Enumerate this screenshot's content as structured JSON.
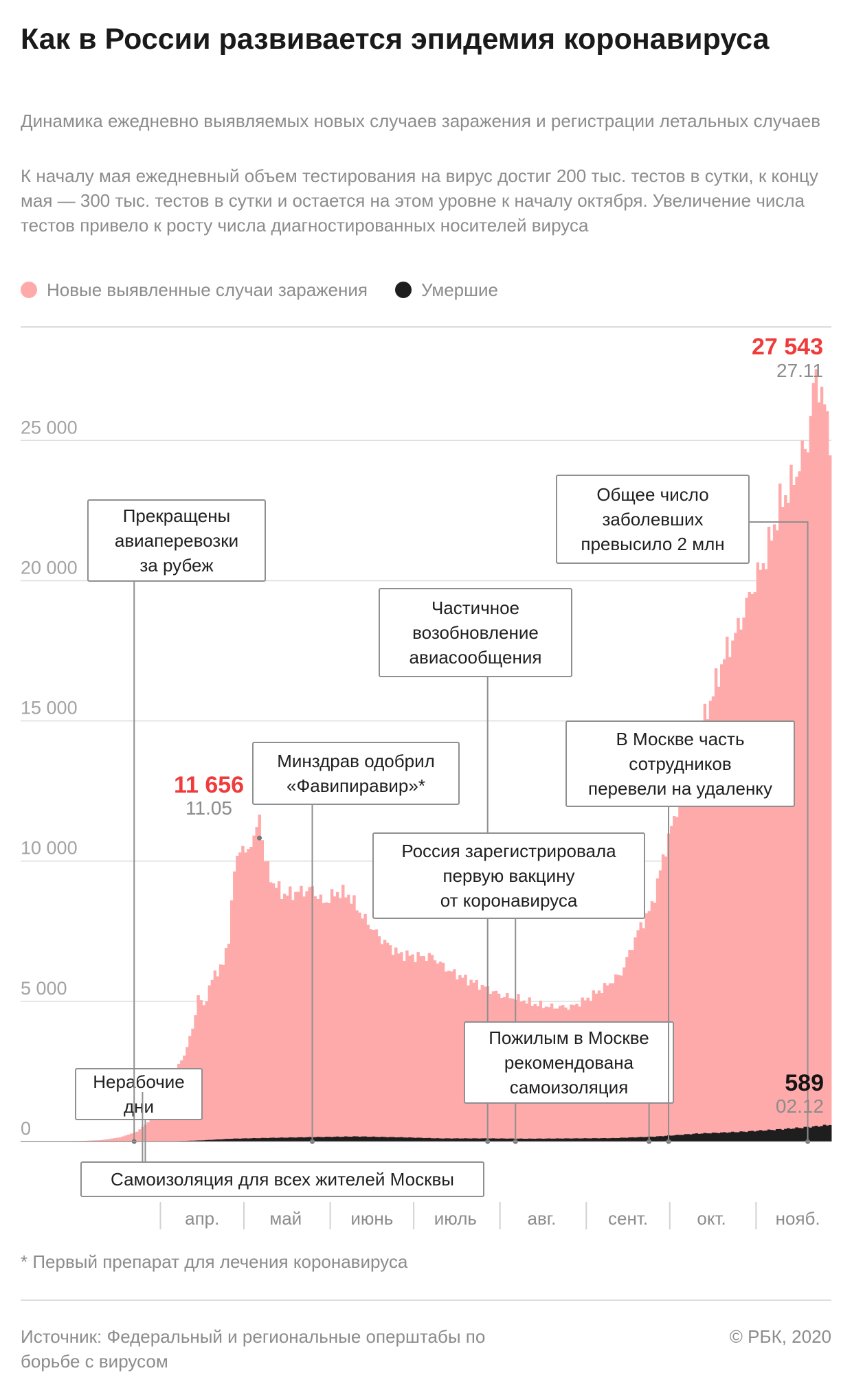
{
  "header": {
    "title": "Как в России развивается эпидемия коронавируса",
    "subtitle": "Динамика ежедневно выявляемых новых случаев заражения и регистрации летальных случаев",
    "description": "К началу мая ежедневный объем тестирования на вирус достиг 200 тыс. тестов в сутки, к концу мая — 300 тыс. тестов в сутки и остается на этом уровне к началу октября. Увеличение числа тестов привело к росту числа диагностированных носителей вируса"
  },
  "legend": {
    "cases_label": "Новые выявленные случаи заражения",
    "deaths_label": "Умершие",
    "cases_color": "#ffaaaa",
    "deaths_color": "#1e1e1e"
  },
  "chart_data": {
    "type": "bar",
    "start_date": "2020-03-03",
    "end_date": "2020-12-02",
    "ylim": [
      0,
      29000
    ],
    "y_ticks": [
      0,
      5000,
      10000,
      15000,
      20000,
      25000
    ],
    "y_tick_labels": [
      "0",
      "5 000",
      "10 000",
      "15 000",
      "20 000",
      "25 000"
    ],
    "month_labels": [
      {
        "date": "2020-04-01",
        "label": "апр."
      },
      {
        "date": "2020-05-01",
        "label": "май"
      },
      {
        "date": "2020-06-01",
        "label": "июнь"
      },
      {
        "date": "2020-07-01",
        "label": "июль"
      },
      {
        "date": "2020-08-01",
        "label": "авг."
      },
      {
        "date": "2020-09-01",
        "label": "сент."
      },
      {
        "date": "2020-10-01",
        "label": "окт."
      },
      {
        "date": "2020-11-01",
        "label": "нояб."
      }
    ],
    "series": [
      {
        "name": "Новые выявленные случаи заражения",
        "key_points": [
          [
            "2020-03-03",
            0
          ],
          [
            "2020-03-15",
            50
          ],
          [
            "2020-03-22",
            150
          ],
          [
            "2020-03-28",
            350
          ],
          [
            "2020-04-02",
            770
          ],
          [
            "2020-04-06",
            1150
          ],
          [
            "2020-04-09",
            1780
          ],
          [
            "2020-04-11",
            2500
          ],
          [
            "2020-04-14",
            3100
          ],
          [
            "2020-04-17",
            4000
          ],
          [
            "2020-04-19",
            5200
          ],
          [
            "2020-04-21",
            4800
          ],
          [
            "2020-04-23",
            5500
          ],
          [
            "2020-04-25",
            6000
          ],
          [
            "2020-04-28",
            6300
          ],
          [
            "2020-04-30",
            7300
          ],
          [
            "2020-05-02",
            9600
          ],
          [
            "2020-05-04",
            10600
          ],
          [
            "2020-05-06",
            10200
          ],
          [
            "2020-05-08",
            10700
          ],
          [
            "2020-05-10",
            11000
          ],
          [
            "2020-05-11",
            11656
          ],
          [
            "2020-05-13",
            10000
          ],
          [
            "2020-05-16",
            9200
          ],
          [
            "2020-05-20",
            8800
          ],
          [
            "2020-05-25",
            8900
          ],
          [
            "2020-05-30",
            9000
          ],
          [
            "2020-06-03",
            8500
          ],
          [
            "2020-06-08",
            8900
          ],
          [
            "2020-06-12",
            8800
          ],
          [
            "2020-06-18",
            7900
          ],
          [
            "2020-06-24",
            7200
          ],
          [
            "2020-06-30",
            6700
          ],
          [
            "2020-07-06",
            6600
          ],
          [
            "2020-07-12",
            6600
          ],
          [
            "2020-07-18",
            6100
          ],
          [
            "2020-07-24",
            5800
          ],
          [
            "2020-07-31",
            5500
          ],
          [
            "2020-08-06",
            5200
          ],
          [
            "2020-08-12",
            5100
          ],
          [
            "2020-08-18",
            4900
          ],
          [
            "2020-08-24",
            4800
          ],
          [
            "2020-08-31",
            4800
          ],
          [
            "2020-09-06",
            5100
          ],
          [
            "2020-09-12",
            5500
          ],
          [
            "2020-09-18",
            6000
          ],
          [
            "2020-09-24",
            7500
          ],
          [
            "2020-09-29",
            8400
          ],
          [
            "2020-10-04",
            10500
          ],
          [
            "2020-10-09",
            12200
          ],
          [
            "2020-10-15",
            14300
          ],
          [
            "2020-10-20",
            15700
          ],
          [
            "2020-10-25",
            17300
          ],
          [
            "2020-10-30",
            18300
          ],
          [
            "2020-11-04",
            19700
          ],
          [
            "2020-11-09",
            20900
          ],
          [
            "2020-11-14",
            22700
          ],
          [
            "2020-11-19",
            23600
          ],
          [
            "2020-11-24",
            25000
          ],
          [
            "2020-11-27",
            27543
          ],
          [
            "2020-11-29",
            26600
          ],
          [
            "2020-12-02",
            25300
          ]
        ]
      },
      {
        "name": "Умершие",
        "key_points": [
          [
            "2020-03-03",
            0
          ],
          [
            "2020-04-10",
            10
          ],
          [
            "2020-04-20",
            40
          ],
          [
            "2020-05-01",
            100
          ],
          [
            "2020-05-15",
            130
          ],
          [
            "2020-06-01",
            160
          ],
          [
            "2020-06-15",
            180
          ],
          [
            "2020-07-01",
            150
          ],
          [
            "2020-07-15",
            110
          ],
          [
            "2020-08-01",
            110
          ],
          [
            "2020-08-15",
            100
          ],
          [
            "2020-09-01",
            110
          ],
          [
            "2020-09-15",
            120
          ],
          [
            "2020-10-01",
            180
          ],
          [
            "2020-10-15",
            280
          ],
          [
            "2020-11-01",
            350
          ],
          [
            "2020-11-15",
            440
          ],
          [
            "2020-11-25",
            520
          ],
          [
            "2020-12-02",
            589
          ]
        ]
      }
    ],
    "highlights": [
      {
        "date": "2020-05-11",
        "value": 11656,
        "value_label": "11 656",
        "date_label": "11.05",
        "series": 0
      },
      {
        "date": "2020-11-27",
        "value": 27543,
        "value_label": "27 543",
        "date_label": "27.11",
        "series": 0
      },
      {
        "date": "2020-12-02",
        "value": 589,
        "value_label": "589",
        "date_label": "02.12",
        "series": 1
      }
    ],
    "annotations": [
      {
        "date": "2020-03-31",
        "lines": [
          "Нерабочие",
          "дни"
        ]
      },
      {
        "date": "2020-03-30",
        "lines": [
          "Самоизоляция для всех жителей Москвы"
        ]
      },
      {
        "date": "2020-03-27",
        "lines": [
          "Прекращены",
          "авиаперевозки",
          "за рубеж"
        ]
      },
      {
        "date": "2020-05-30",
        "lines": [
          "Минздрав одобрил",
          "«Фавипиравир»*"
        ]
      },
      {
        "date": "2020-08-01",
        "lines": [
          "Частичное",
          "возобновление",
          "авиасообщения"
        ]
      },
      {
        "date": "2020-08-11",
        "lines": [
          "Россия зарегистрировала",
          "первую вакцину",
          "от коронавируса"
        ]
      },
      {
        "date": "2020-09-28",
        "lines": [
          "Пожилым в Москве",
          "рекомендована",
          "самоизоляция"
        ]
      },
      {
        "date": "2020-10-05",
        "lines": [
          "В Москве часть",
          "сотрудников",
          "перевели на удаленку"
        ]
      },
      {
        "date": "2020-11-24",
        "lines": [
          "Общее число",
          "заболевших",
          "превысило 2 млн"
        ]
      }
    ]
  },
  "footnote": "* Первый препарат для лечения коронавируса",
  "footer": {
    "source": "Источник: Федеральный и региональные оперштабы по борьбе с вирусом",
    "copyright": "© РБК, 2020"
  }
}
